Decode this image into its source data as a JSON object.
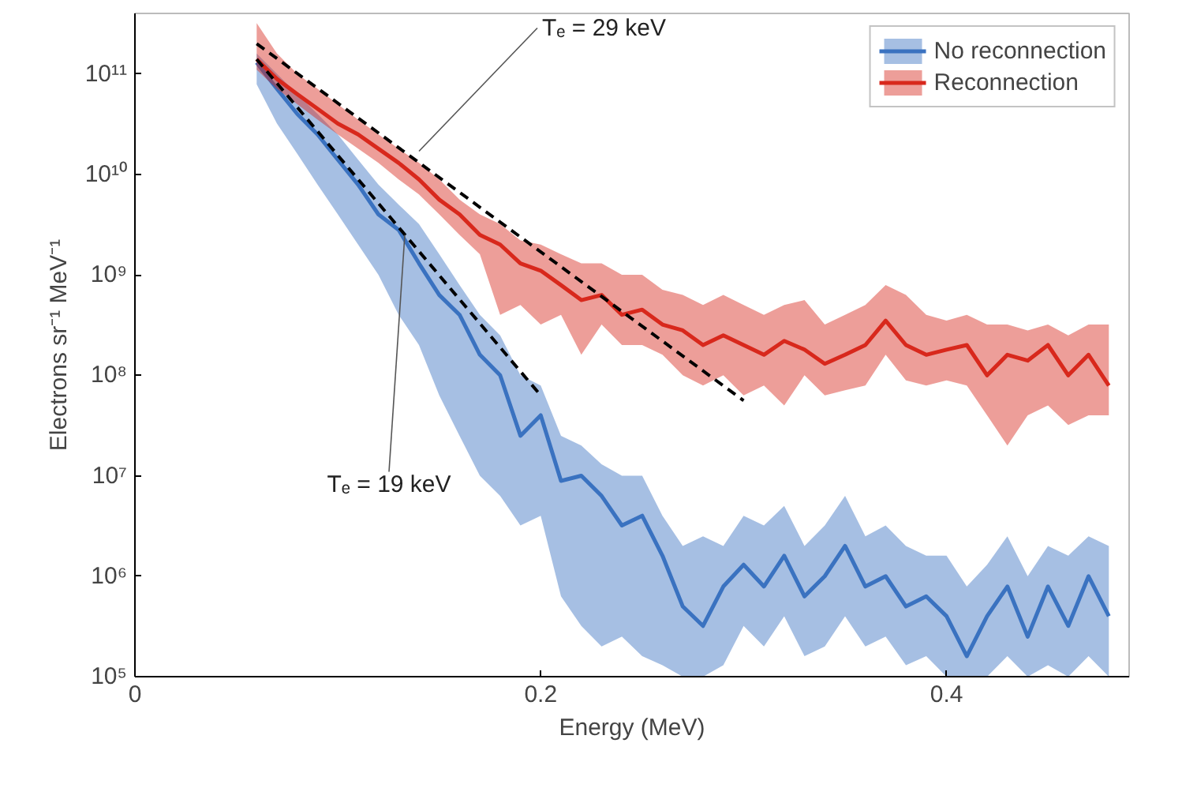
{
  "chart_data": {
    "type": "line",
    "xlabel": "Energy (MeV)",
    "ylabel": "Electrons sr⁻¹ MeV⁻¹",
    "x": [
      0.06,
      0.07,
      0.08,
      0.09,
      0.1,
      0.11,
      0.12,
      0.13,
      0.14,
      0.15,
      0.16,
      0.17,
      0.18,
      0.19,
      0.2,
      0.21,
      0.22,
      0.23,
      0.24,
      0.25,
      0.26,
      0.27,
      0.28,
      0.29,
      0.3,
      0.31,
      0.32,
      0.33,
      0.34,
      0.35,
      0.36,
      0.37,
      0.38,
      0.39,
      0.4,
      0.41,
      0.42,
      0.43,
      0.44,
      0.45,
      0.46,
      0.47,
      0.48
    ],
    "series": [
      {
        "name": "No reconnection",
        "color": "#3a72c0",
        "values": [
          130000000000.0,
          71000000000.0,
          40000000000.0,
          25000000000.0,
          14000000000.0,
          7900000000.0,
          4000000000.0,
          2800000000.0,
          1300000000.0,
          630000000.0,
          400000000.0,
          160000000.0,
          100000000.0,
          25000000.0,
          40000000.0,
          8900000.0,
          10000000.0,
          6300000.0,
          3200000.0,
          4000000.0,
          1600000.0,
          500000.0,
          320000.0,
          790000.0,
          1300000.0,
          790000.0,
          1600000.0,
          630000.0,
          1000000.0,
          2000000.0,
          790000.0,
          1000000.0,
          500000.0,
          630000.0,
          400000.0,
          160000.0,
          400000.0,
          790000.0,
          250000.0,
          790000.0,
          320000.0,
          1000000.0,
          400000.0
        ],
        "lower": [
          79000000000.0,
          32000000000.0,
          16000000000.0,
          7900000000.0,
          4000000000.0,
          2000000000.0,
          1000000000.0,
          400000000.0,
          200000000.0,
          63000000.0,
          25000000.0,
          10000000.0,
          6300000.0,
          3200000.0,
          4000000.0,
          630000.0,
          320000.0,
          200000.0,
          250000.0,
          160000.0,
          130000.0,
          100000.0,
          100000.0,
          130000.0,
          320000.0,
          200000.0,
          400000.0,
          160000.0,
          200000.0,
          400000.0,
          200000.0,
          250000.0,
          130000.0,
          160000.0,
          100000.0,
          100000.0,
          100000.0,
          160000.0,
          100000.0,
          130000.0,
          100000.0,
          160000.0,
          100000.0
        ],
        "upper": [
          160000000000.0,
          100000000000.0,
          63000000000.0,
          40000000000.0,
          25000000000.0,
          14000000000.0,
          7900000000.0,
          5000000000.0,
          3200000000.0,
          1600000000.0,
          790000000.0,
          400000000.0,
          250000000.0,
          100000000.0,
          79000000.0,
          25000000.0,
          20000000.0,
          13000000.0,
          10000000.0,
          10000000.0,
          4000000.0,
          2000000.0,
          2500000.0,
          2000000.0,
          4000000.0,
          3200000.0,
          5000000.0,
          2000000.0,
          3200000.0,
          6300000.0,
          2500000.0,
          3200000.0,
          2000000.0,
          1600000.0,
          1600000.0,
          790000.0,
          1300000.0,
          2500000.0,
          1000000.0,
          2000000.0,
          1600000.0,
          2500000.0,
          2000000.0
        ]
      },
      {
        "name": "Reconnection",
        "color": "#d8281c",
        "values": [
          140000000000.0,
          89000000000.0,
          63000000000.0,
          45000000000.0,
          32000000000.0,
          25000000000.0,
          18000000000.0,
          13000000000.0,
          8900000000.0,
          5600000000.0,
          4000000000.0,
          2500000000.0,
          2000000000.0,
          1300000000.0,
          1100000000.0,
          790000000.0,
          560000000.0,
          630000000.0,
          400000000.0,
          450000000.0,
          320000000.0,
          280000000.0,
          200000000.0,
          250000000.0,
          200000000.0,
          160000000.0,
          220000000.0,
          180000000.0,
          130000000.0,
          160000000.0,
          200000000.0,
          350000000.0,
          200000000.0,
          160000000.0,
          180000000.0,
          200000000.0,
          100000000.0,
          160000000.0,
          140000000.0,
          200000000.0,
          100000000.0,
          160000000.0,
          79000000.0
        ],
        "lower": [
          110000000000.0,
          71000000000.0,
          50000000000.0,
          35000000000.0,
          25000000000.0,
          18000000000.0,
          13000000000.0,
          8900000000.0,
          6300000000.0,
          4000000000.0,
          2500000000.0,
          1600000000.0,
          400000000.0,
          500000000.0,
          320000000.0,
          400000000.0,
          160000000.0,
          320000000.0,
          200000000.0,
          200000000.0,
          160000000.0,
          100000000.0,
          79000000.0,
          100000000.0,
          63000000.0,
          79000000.0,
          50000000.0,
          100000000.0,
          63000000.0,
          71000000.0,
          79000000.0,
          160000000.0,
          89000000.0,
          79000000.0,
          89000000.0,
          79000000.0,
          40000000.0,
          20000000.0,
          40000000.0,
          50000000.0,
          32000000.0,
          40000000.0,
          40000000.0
        ],
        "upper": [
          320000000000.0,
          160000000000.0,
          100000000000.0,
          71000000000.0,
          50000000000.0,
          35000000000.0,
          25000000000.0,
          18000000000.0,
          13000000000.0,
          8900000000.0,
          5600000000.0,
          4000000000.0,
          3200000000.0,
          2200000000.0,
          2000000000.0,
          1600000000.0,
          1300000000.0,
          1300000000.0,
          1000000000.0,
          1000000000.0,
          710000000.0,
          630000000.0,
          500000000.0,
          630000000.0,
          500000000.0,
          400000000.0,
          500000000.0,
          560000000.0,
          320000000.0,
          400000000.0,
          500000000.0,
          790000000.0,
          630000000.0,
          400000000.0,
          350000000.0,
          400000000.0,
          320000000.0,
          320000000.0,
          280000000.0,
          320000000.0,
          250000000.0,
          320000000.0,
          320000000.0
        ]
      },
      {
        "type": "line",
        "color": "#000000",
        "line_style": "dashed",
        "x": [
          0.06,
          0.3
        ],
        "values": [
          200000000000.0,
          56000000.0
        ]
      },
      {
        "type": "line",
        "color": "#000000",
        "line_style": "dashed",
        "x": [
          0.06,
          0.2
        ],
        "values": [
          140000000000.0,
          63000000.0
        ]
      }
    ],
    "annotations": [
      {
        "text": "Tₑ = 29 keV",
        "x": 0.14,
        "y": 17000000000.0
      },
      {
        "text": "Tₑ = 19 keV",
        "x": 0.133,
        "y": 2500000000.0
      }
    ],
    "log": "y",
    "xlim": [
      0,
      0.49
    ],
    "ylim": [
      100000.0,
      400000000000.0
    ],
    "xticks": [
      0,
      0.2,
      0.4
    ],
    "yticks": [
      {
        "value": 100000.0,
        "label": "10⁵"
      },
      {
        "value": 1000000.0,
        "label": "10⁶"
      },
      {
        "value": 10000000.0,
        "label": "10⁷"
      },
      {
        "value": 100000000.0,
        "label": "10⁸"
      },
      {
        "value": 1000000000.0,
        "label": "10⁹"
      },
      {
        "value": 10000000000.0,
        "label": "10¹⁰"
      },
      {
        "value": 100000000000.0,
        "label": "10¹¹"
      }
    ],
    "grid": false,
    "legend": "top right"
  }
}
